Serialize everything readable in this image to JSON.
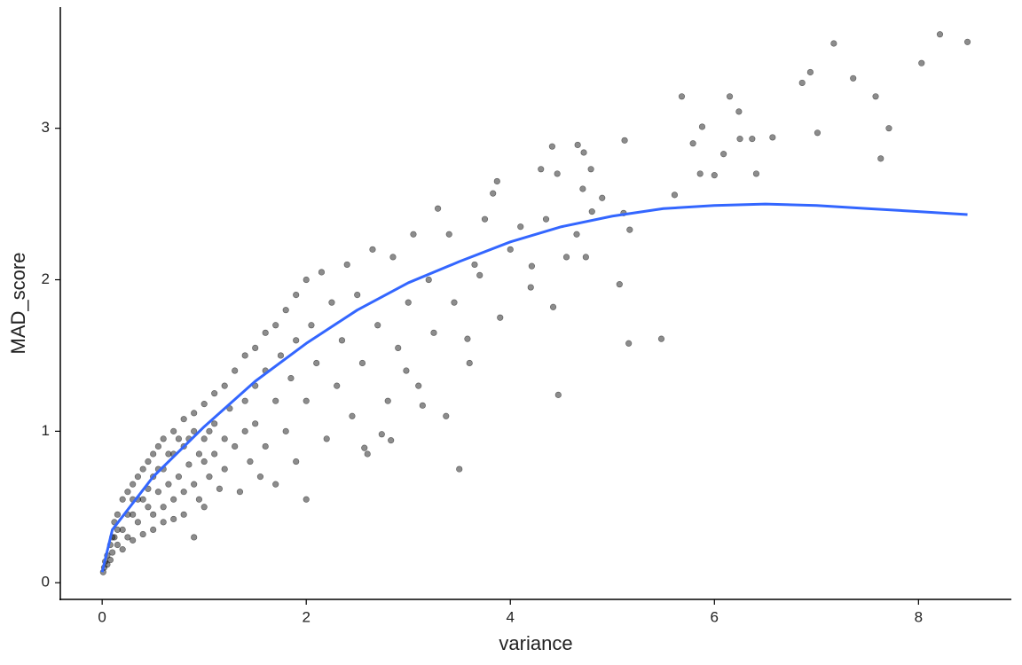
{
  "chart_data": {
    "type": "scatter",
    "x_label": "variance",
    "y_label": "MAD_score",
    "xlim": [
      -0.41,
      8.91
    ],
    "ylim": [
      -0.11,
      3.8
    ],
    "xticks": [
      0,
      2,
      4,
      6,
      8
    ],
    "yticks": [
      0,
      1,
      2,
      3
    ],
    "grid": false,
    "series": [
      {
        "type": "scatter",
        "color": "#000000",
        "x": [
          8.48,
          8.21,
          8.03,
          7.17,
          6.94,
          6.86,
          7.36,
          7.58,
          7.71,
          7.63,
          7.01,
          6.57,
          6.37,
          6.41,
          6.25,
          6.15,
          6.24,
          6.09,
          5.68,
          5.88,
          5.79,
          5.86,
          6.0,
          5.61,
          5.12,
          5.07,
          5.16,
          5.48,
          5.17,
          5.11,
          4.47,
          3.5,
          4.42,
          4.41,
          4.66,
          4.72,
          4.79,
          4.3,
          4.46,
          4.71,
          4.9,
          3.87,
          3.83,
          3.29,
          4.74,
          4.21,
          3.7,
          3.58,
          3.37,
          3.14,
          2.83,
          2.74,
          2.57,
          2.98,
          0.9,
          0.01,
          0.02,
          0.03,
          0.05,
          0.05,
          0.08,
          0.08,
          0.1,
          0.1,
          0.12,
          0.15,
          0.15,
          0.2,
          0.2,
          0.2,
          0.25,
          0.25,
          0.3,
          0.3,
          0.3,
          0.35,
          0.35,
          0.4,
          0.4,
          0.4,
          0.45,
          0.45,
          0.5,
          0.5,
          0.5,
          0.5,
          0.55,
          0.55,
          0.6,
          0.6,
          0.6,
          0.6,
          0.65,
          0.7,
          0.7,
          0.7,
          0.7,
          0.75,
          0.8,
          0.8,
          0.8,
          0.8,
          0.85,
          0.9,
          0.9,
          0.9,
          0.95,
          1.0,
          1.0,
          1.0,
          1.0,
          1.05,
          1.1,
          1.1,
          1.1,
          1.15,
          1.2,
          1.2,
          1.2,
          1.25,
          1.3,
          1.3,
          1.35,
          1.4,
          1.4,
          1.4,
          1.45,
          1.5,
          1.5,
          1.5,
          1.55,
          1.6,
          1.6,
          1.6,
          1.7,
          1.7,
          1.7,
          1.75,
          1.8,
          1.8,
          1.85,
          1.9,
          1.9,
          1.9,
          2.0,
          2.0,
          2.0,
          2.05,
          2.1,
          2.15,
          2.2,
          2.25,
          2.3,
          2.35,
          2.4,
          2.45,
          2.5,
          2.55,
          2.6,
          2.65,
          2.7,
          2.8,
          2.85,
          2.9,
          3.0,
          3.05,
          3.1,
          3.2,
          3.25,
          3.4,
          3.45,
          3.6,
          3.65,
          3.75,
          3.9,
          4.0,
          4.1,
          4.2,
          4.35,
          4.55,
          4.65,
          4.8,
          0.3,
          0.45,
          0.65,
          0.75,
          0.85,
          0.95,
          1.05,
          0.55,
          0.35,
          0.25,
          0.15,
          0.12
        ],
        "values": [
          3.57,
          3.62,
          3.43,
          3.56,
          3.37,
          3.3,
          3.33,
          3.21,
          3.0,
          2.8,
          2.97,
          2.94,
          2.93,
          2.7,
          2.93,
          3.21,
          3.11,
          2.83,
          3.21,
          3.01,
          2.9,
          2.7,
          2.69,
          2.56,
          2.92,
          1.97,
          1.58,
          1.61,
          2.33,
          2.44,
          1.24,
          0.75,
          1.82,
          2.88,
          2.89,
          2.84,
          2.73,
          2.73,
          2.7,
          2.6,
          2.54,
          2.65,
          2.57,
          2.47,
          2.15,
          2.09,
          2.03,
          1.61,
          1.1,
          1.17,
          0.94,
          0.98,
          0.89,
          1.4,
          0.3,
          0.07,
          0.1,
          0.14,
          0.18,
          0.12,
          0.25,
          0.15,
          0.3,
          0.2,
          0.4,
          0.25,
          0.45,
          0.35,
          0.55,
          0.22,
          0.6,
          0.3,
          0.45,
          0.65,
          0.28,
          0.7,
          0.4,
          0.55,
          0.75,
          0.32,
          0.62,
          0.8,
          0.45,
          0.7,
          0.85,
          0.35,
          0.6,
          0.9,
          0.5,
          0.75,
          0.95,
          0.4,
          0.65,
          0.55,
          0.85,
          1.0,
          0.42,
          0.7,
          0.6,
          0.9,
          1.08,
          0.45,
          0.78,
          0.65,
          1.0,
          1.12,
          0.55,
          0.8,
          1.18,
          0.95,
          0.5,
          0.7,
          1.05,
          1.25,
          0.85,
          0.62,
          1.3,
          0.95,
          0.75,
          1.15,
          1.4,
          0.9,
          0.6,
          1.2,
          1.5,
          1.0,
          0.8,
          1.55,
          1.3,
          1.05,
          0.7,
          1.65,
          1.4,
          0.9,
          1.7,
          1.2,
          0.65,
          1.5,
          1.8,
          1.0,
          1.35,
          1.9,
          1.6,
          0.8,
          2.0,
          1.2,
          0.55,
          1.7,
          1.45,
          2.05,
          0.95,
          1.85,
          1.3,
          1.6,
          2.1,
          1.1,
          1.9,
          1.45,
          0.85,
          2.2,
          1.7,
          1.2,
          2.15,
          1.55,
          1.85,
          2.3,
          1.3,
          2.0,
          1.65,
          2.3,
          1.85,
          1.45,
          2.1,
          2.4,
          1.75,
          2.2,
          2.35,
          1.95,
          2.4,
          2.15,
          2.3,
          2.45,
          0.55,
          0.5,
          0.85,
          0.95,
          0.95,
          0.85,
          1.0,
          0.75,
          0.55,
          0.45,
          0.35,
          0.3
        ]
      },
      {
        "type": "line",
        "color": "#3366ff",
        "x": [
          0,
          0.1,
          0.5,
          1,
          1.5,
          2,
          2.5,
          3,
          3.5,
          4,
          4.5,
          5,
          5.5,
          6,
          6.5,
          7,
          7.5,
          8,
          8.48
        ],
        "values": [
          0.07,
          0.35,
          0.7,
          1.03,
          1.33,
          1.58,
          1.8,
          1.98,
          2.12,
          2.25,
          2.35,
          2.42,
          2.47,
          2.49,
          2.5,
          2.49,
          2.47,
          2.45,
          2.43
        ]
      }
    ]
  }
}
